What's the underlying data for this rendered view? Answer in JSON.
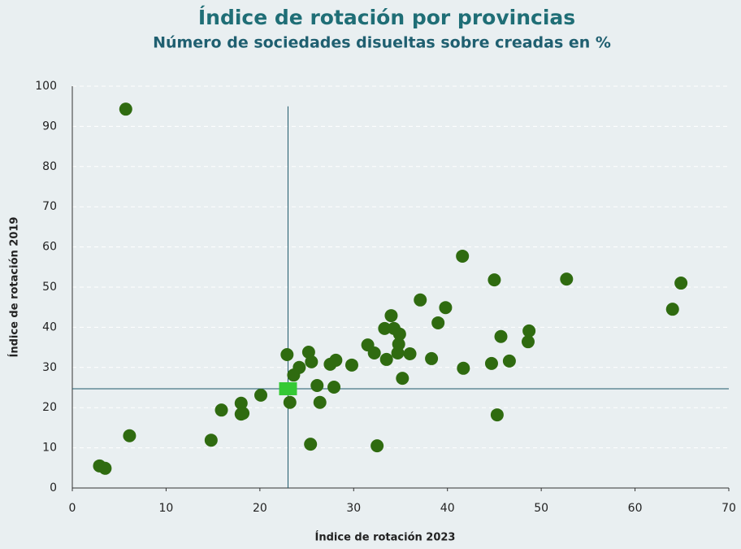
{
  "chart_data": {
    "type": "scatter",
    "title": "Índice de rotación por provincias",
    "subtitle": "Número de sociedades disueltas sobre creadas en %",
    "x_label": "Índice de rotación 2023",
    "y_label": "Índice de rotación 2019",
    "xlim": [
      0,
      70
    ],
    "xticks": [
      0,
      10,
      20,
      30,
      40,
      50,
      60,
      70
    ],
    "ylim": [
      0,
      100
    ],
    "yticks": [
      0,
      10,
      20,
      30,
      40,
      50,
      60,
      70,
      80,
      90,
      100
    ],
    "grid": true,
    "series": [
      {
        "color": "#2f6b10",
        "x": [
          5.7,
          2.9,
          3.5,
          6.1,
          14.8,
          15.9,
          18.0,
          18.0,
          18.2,
          20.1,
          22.9,
          23.2,
          23.6,
          24.2,
          25.2,
          25.5,
          25.4,
          26.1,
          26.4,
          27.5,
          28.1,
          27.9,
          29.8,
          31.5,
          32.2,
          32.5,
          33.3,
          33.5,
          34.0,
          34.3,
          34.7,
          34.8,
          34.9,
          35.2,
          36.0,
          37.1,
          38.3,
          39.0,
          39.8,
          41.6,
          41.7,
          44.7,
          45.0,
          45.3,
          45.7,
          46.6,
          48.6,
          48.7,
          52.7,
          64.0,
          64.9
        ],
        "values": [
          94.3,
          5.5,
          4.9,
          13.0,
          11.9,
          19.4,
          21.1,
          18.4,
          18.6,
          23.1,
          33.2,
          21.3,
          28.1,
          30.0,
          33.8,
          31.4,
          10.9,
          25.5,
          21.3,
          30.8,
          31.8,
          25.1,
          30.6,
          35.6,
          33.6,
          10.5,
          39.7,
          32.0,
          42.9,
          39.7,
          33.6,
          35.8,
          38.3,
          27.3,
          33.4,
          46.8,
          32.2,
          41.1,
          44.9,
          57.7,
          29.8,
          31.0,
          51.8,
          18.2,
          37.7,
          31.6,
          36.4,
          39.1,
          52.0,
          44.5,
          51.0
        ]
      }
    ],
    "reference_point": {
      "x": 23.0,
      "y": 24.7,
      "color": "#35c935"
    }
  }
}
